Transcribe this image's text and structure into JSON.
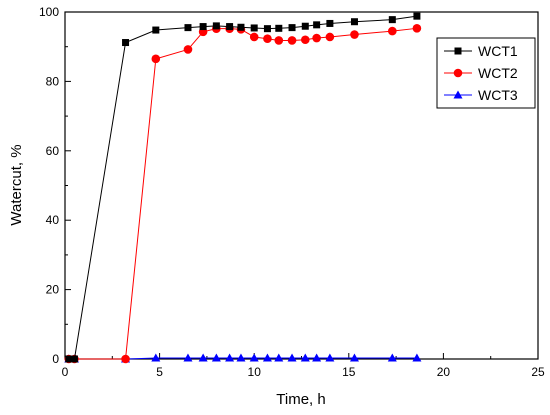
{
  "chart_data": {
    "type": "line",
    "title": "",
    "xlabel": "Time, h",
    "ylabel": "Watercut, %",
    "xlim": [
      0,
      25
    ],
    "ylim": [
      0,
      100
    ],
    "xticks": [
      0,
      5,
      10,
      15,
      20,
      25
    ],
    "yticks": [
      0,
      20,
      40,
      60,
      80,
      100
    ],
    "grid": false,
    "legend_position": "top-right",
    "series": [
      {
        "name": "WCT1",
        "color": "#000000",
        "marker": "square",
        "points": [
          [
            0.2,
            0
          ],
          [
            0.5,
            0
          ],
          [
            3.2,
            91.2
          ],
          [
            4.8,
            94.8
          ],
          [
            6.5,
            95.5
          ],
          [
            7.3,
            95.8
          ],
          [
            8.0,
            96.0
          ],
          [
            8.7,
            95.8
          ],
          [
            9.3,
            95.6
          ],
          [
            10.0,
            95.4
          ],
          [
            10.7,
            95.2
          ],
          [
            11.3,
            95.3
          ],
          [
            12.0,
            95.5
          ],
          [
            12.7,
            95.9
          ],
          [
            13.3,
            96.3
          ],
          [
            14.0,
            96.7
          ],
          [
            15.3,
            97.2
          ],
          [
            17.3,
            97.8
          ],
          [
            18.6,
            98.8
          ]
        ]
      },
      {
        "name": "WCT2",
        "color": "#ff0000",
        "marker": "circle",
        "points": [
          [
            0.2,
            0
          ],
          [
            0.5,
            0
          ],
          [
            3.2,
            0
          ],
          [
            4.8,
            86.5
          ],
          [
            6.5,
            89.2
          ],
          [
            7.3,
            94.3
          ],
          [
            8.0,
            95.2
          ],
          [
            8.7,
            95.2
          ],
          [
            9.3,
            95.0
          ],
          [
            10.0,
            92.8
          ],
          [
            10.7,
            92.3
          ],
          [
            11.3,
            91.8
          ],
          [
            12.0,
            91.8
          ],
          [
            12.7,
            92.0
          ],
          [
            13.3,
            92.5
          ],
          [
            14.0,
            92.8
          ],
          [
            15.3,
            93.5
          ],
          [
            17.3,
            94.5
          ],
          [
            18.6,
            95.3
          ]
        ]
      },
      {
        "name": "WCT3",
        "color": "#0000ff",
        "marker": "triangle",
        "points": [
          [
            0.2,
            0
          ],
          [
            0.5,
            0
          ],
          [
            3.2,
            0
          ],
          [
            4.8,
            0.3
          ],
          [
            6.5,
            0.3
          ],
          [
            7.3,
            0.3
          ],
          [
            8.0,
            0.3
          ],
          [
            8.7,
            0.3
          ],
          [
            9.3,
            0.3
          ],
          [
            10.0,
            0.3
          ],
          [
            10.7,
            0.3
          ],
          [
            11.3,
            0.3
          ],
          [
            12.0,
            0.3
          ],
          [
            12.7,
            0.3
          ],
          [
            13.3,
            0.3
          ],
          [
            14.0,
            0.3
          ],
          [
            15.3,
            0.3
          ],
          [
            17.3,
            0.3
          ],
          [
            18.6,
            0.3
          ]
        ]
      }
    ]
  }
}
